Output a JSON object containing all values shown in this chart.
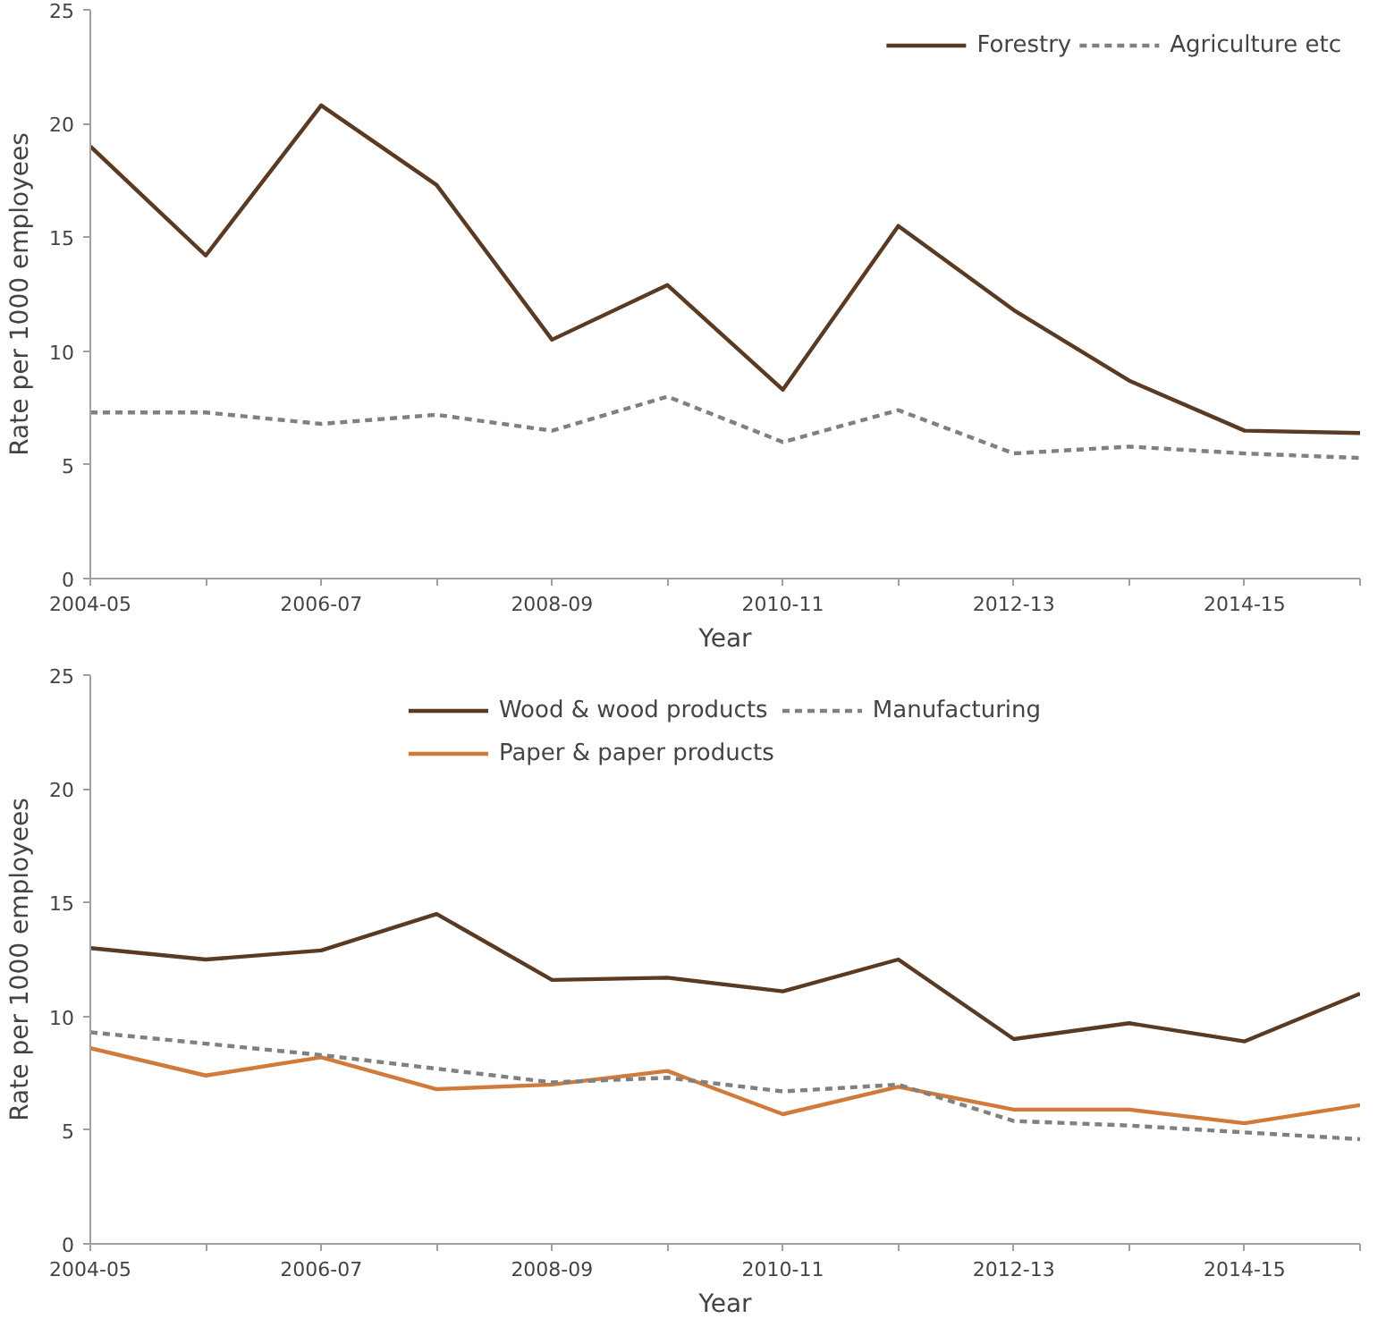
{
  "chart_data": [
    {
      "type": "line",
      "xlabel": "Year",
      "ylabel": "Rate per 1000 employees",
      "categories": [
        "2004-05",
        null,
        "2006-07",
        null,
        "2008-09",
        null,
        "2010-11",
        null,
        "2012-13",
        null,
        "2014-15",
        null
      ],
      "ylim": [
        0,
        25
      ],
      "yticks": [
        0,
        5,
        10,
        15,
        20,
        25
      ],
      "grid": false,
      "legend": "top right",
      "series": [
        {
          "name": "Forestry",
          "color": "#5a3a22",
          "line_style": "solid",
          "values": [
            19.0,
            14.2,
            20.8,
            17.3,
            10.5,
            12.9,
            8.3,
            15.5,
            11.8,
            8.7,
            6.5,
            6.4
          ]
        },
        {
          "name": "Agriculture etc",
          "color": "#808080",
          "line_style": "dashed",
          "values": [
            7.3,
            7.3,
            6.8,
            7.2,
            6.5,
            8.0,
            6.0,
            7.4,
            5.5,
            5.8,
            5.5,
            5.3
          ]
        }
      ]
    },
    {
      "type": "line",
      "xlabel": "Year",
      "ylabel": "Rate per 1000 employees",
      "categories": [
        "2004-05",
        null,
        "2006-07",
        null,
        "2008-09",
        null,
        "2010-11",
        null,
        "2012-13",
        null,
        "2014-15",
        null
      ],
      "ylim": [
        0,
        25
      ],
      "yticks": [
        0,
        5,
        10,
        15,
        20,
        25
      ],
      "grid": false,
      "legend": "top",
      "series": [
        {
          "name": "Wood & wood products",
          "color": "#5a3a22",
          "line_style": "solid",
          "values": [
            13.0,
            12.5,
            12.9,
            14.5,
            11.6,
            11.7,
            11.1,
            12.5,
            9.0,
            9.7,
            8.9,
            11.0
          ]
        },
        {
          "name": "Paper & paper products",
          "color": "#d07a3c",
          "line_style": "solid",
          "values": [
            8.6,
            7.4,
            8.2,
            6.8,
            7.0,
            7.6,
            5.7,
            6.9,
            5.9,
            5.9,
            5.3,
            6.1
          ]
        },
        {
          "name": "Manufacturing",
          "color": "#808080",
          "line_style": "dashed",
          "values": [
            9.3,
            8.8,
            8.3,
            7.7,
            7.1,
            7.3,
            6.7,
            7.0,
            5.4,
            5.2,
            4.9,
            4.6
          ]
        }
      ]
    }
  ]
}
